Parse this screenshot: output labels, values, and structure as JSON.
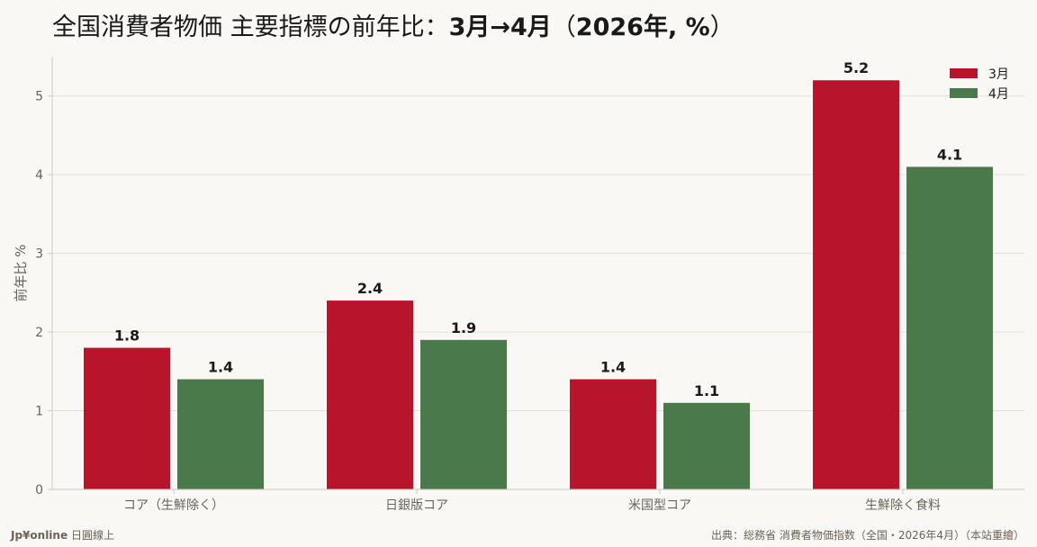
{
  "title": {
    "main": "全国消費者物価 主要指標の前年比：",
    "bold": "3月→4月",
    "paren_open": "（",
    "bold2": "2026年, %",
    "paren_close": "）"
  },
  "footer": {
    "brand": "Jp¥online",
    "brand_sub": "日圓線上",
    "source": "出典：総務省 消費者物価指数（全国・2026年4月）（本站重繪）"
  },
  "colors": {
    "march": "#b8142c",
    "april": "#4a7a4c",
    "grid": "#e3ded6",
    "axis": "#cfc9c0",
    "tick_text": "#6b6358",
    "label_text": "#1a1a1a"
  },
  "chart_data": {
    "type": "bar",
    "categories": [
      "コア（生鮮除く）",
      "日銀版コア",
      "米国型コア",
      "生鮮除く食料"
    ],
    "series": [
      {
        "name": "3月",
        "values": [
          1.8,
          2.4,
          1.4,
          5.2
        ]
      },
      {
        "name": "4月",
        "values": [
          1.4,
          1.9,
          1.1,
          4.1
        ]
      }
    ],
    "value_labels": [
      [
        "1.8",
        "2.4",
        "1.4",
        "5.2"
      ],
      [
        "1.4",
        "1.9",
        "1.1",
        "4.1"
      ]
    ],
    "ylabel": "前年比 %",
    "yticks": [
      "0",
      "1",
      "2",
      "3",
      "4",
      "5"
    ],
    "ylim": [
      0,
      5.5
    ],
    "grid": true,
    "legend": "top-right"
  }
}
